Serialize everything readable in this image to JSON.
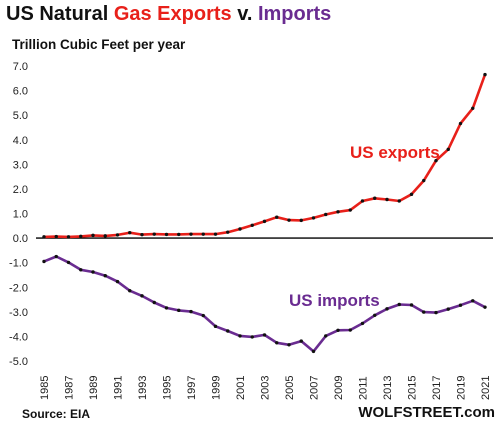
{
  "chart_data": {
    "type": "line",
    "title_parts": [
      {
        "text": "US Natural ",
        "color": "#111111"
      },
      {
        "text": "Gas Exports",
        "color": "#e8201a"
      },
      {
        "text": " v. ",
        "color": "#111111"
      },
      {
        "text": "Imports",
        "color": "#6a2c91"
      }
    ],
    "subtitle": "Trillion Cubic Feet per year",
    "x": [
      1985,
      1986,
      1987,
      1988,
      1989,
      1990,
      1991,
      1992,
      1993,
      1994,
      1995,
      1996,
      1997,
      1998,
      1999,
      2000,
      2001,
      2002,
      2003,
      2004,
      2005,
      2006,
      2007,
      2008,
      2009,
      2010,
      2011,
      2012,
      2013,
      2014,
      2015,
      2016,
      2017,
      2018,
      2019,
      2020,
      2021
    ],
    "x_tick_labels": [
      "1985",
      "1987",
      "1989",
      "1991",
      "1993",
      "1995",
      "1997",
      "1999",
      "2001",
      "2003",
      "2005",
      "2007",
      "2009",
      "2011",
      "2013",
      "2015",
      "2017",
      "2019",
      "2021"
    ],
    "x_tick_values": [
      1985,
      1987,
      1989,
      1991,
      1993,
      1995,
      1997,
      1999,
      2001,
      2003,
      2005,
      2007,
      2009,
      2011,
      2013,
      2015,
      2017,
      2019,
      2021
    ],
    "ylim": [
      -5.0,
      7.0
    ],
    "y_tick_values": [
      7,
      6,
      5,
      4,
      3,
      2,
      1,
      0,
      -1,
      -2,
      -3,
      -4,
      -5
    ],
    "y_tick_labels": [
      "7.0",
      "6.0",
      "5.0",
      "4.0",
      "3.0",
      "2.0",
      "1.0",
      "0.0",
      "-1.0",
      "-2.0",
      "-3.0",
      "-4.0",
      "-5.0"
    ],
    "grid": false,
    "series": [
      {
        "name": "US exports",
        "color": "#e8201a",
        "values": [
          0.05,
          0.06,
          0.05,
          0.07,
          0.11,
          0.09,
          0.13,
          0.22,
          0.14,
          0.16,
          0.15,
          0.15,
          0.16,
          0.16,
          0.16,
          0.24,
          0.37,
          0.52,
          0.68,
          0.85,
          0.73,
          0.72,
          0.82,
          0.96,
          1.07,
          1.14,
          1.51,
          1.62,
          1.57,
          1.51,
          1.78,
          2.34,
          3.15,
          3.61,
          4.66,
          5.28,
          6.65
        ]
      },
      {
        "name": "US imports",
        "color": "#6a2c91",
        "values": [
          -0.95,
          -0.75,
          -0.99,
          -1.29,
          -1.38,
          -1.53,
          -1.77,
          -2.14,
          -2.35,
          -2.62,
          -2.84,
          -2.94,
          -2.99,
          -3.15,
          -3.59,
          -3.78,
          -3.98,
          -4.02,
          -3.94,
          -4.26,
          -4.34,
          -4.19,
          -4.61,
          -3.98,
          -3.75,
          -3.74,
          -3.47,
          -3.14,
          -2.88,
          -2.7,
          -2.72,
          -3.01,
          -3.03,
          -2.89,
          -2.73,
          -2.55,
          -2.81
        ]
      }
    ]
  },
  "source": "Source: EIA",
  "watermark": "WOLFSTREET.com"
}
